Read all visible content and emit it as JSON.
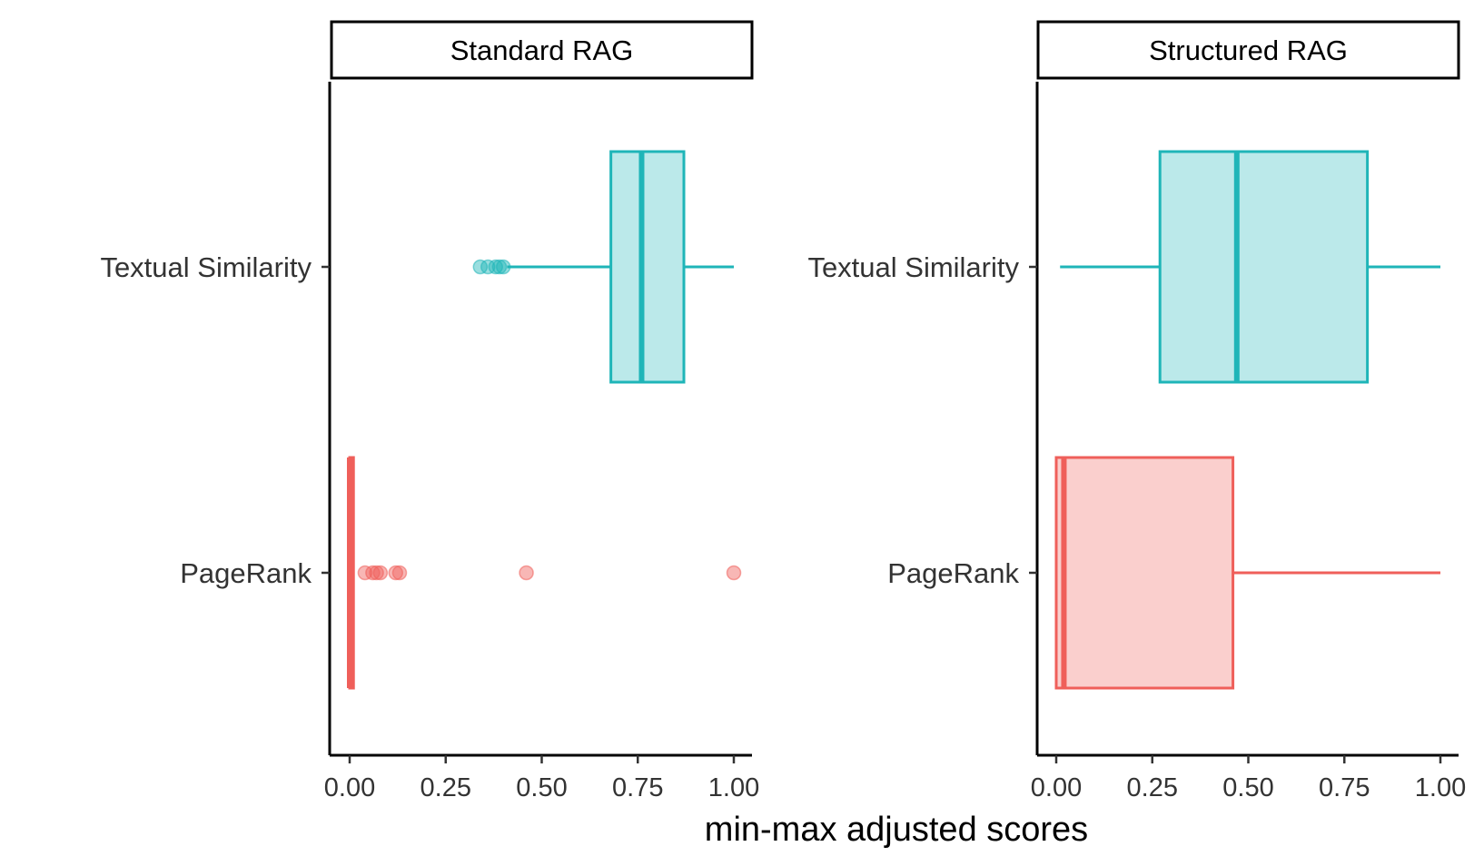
{
  "chart_data": {
    "type": "boxplot",
    "xlabel": "min-max adjusted scores",
    "xlim": [
      0,
      1
    ],
    "x_ticks": [
      "0.00",
      "0.25",
      "0.50",
      "0.75",
      "1.00"
    ],
    "categories": [
      "Textual Similarity",
      "PageRank"
    ],
    "colors": {
      "Textual Similarity": "#1fb5b8",
      "PageRank": "#ef5f5a"
    },
    "grid": false,
    "legend": "none",
    "panels": [
      {
        "title": "Standard RAG",
        "boxes": [
          {
            "category": "Textual Similarity",
            "min": 0.41,
            "q1": 0.68,
            "median": 0.76,
            "q3": 0.87,
            "max": 1.0,
            "outliers": [
              0.34,
              0.36,
              0.38,
              0.39,
              0.4
            ]
          },
          {
            "category": "PageRank",
            "min": 0.0,
            "q1": 0.0,
            "median": 0.0,
            "q3": 0.01,
            "max": 0.01,
            "outliers": [
              0.04,
              0.06,
              0.07,
              0.08,
              0.12,
              0.13,
              0.46,
              1.0
            ]
          }
        ]
      },
      {
        "title": "Structured RAG",
        "boxes": [
          {
            "category": "Textual Similarity",
            "min": 0.01,
            "q1": 0.27,
            "median": 0.47,
            "q3": 0.81,
            "max": 1.0,
            "outliers": []
          },
          {
            "category": "PageRank",
            "min": 0.0,
            "q1": 0.0,
            "median": 0.02,
            "q3": 0.46,
            "max": 1.0,
            "outliers": []
          }
        ]
      }
    ]
  }
}
